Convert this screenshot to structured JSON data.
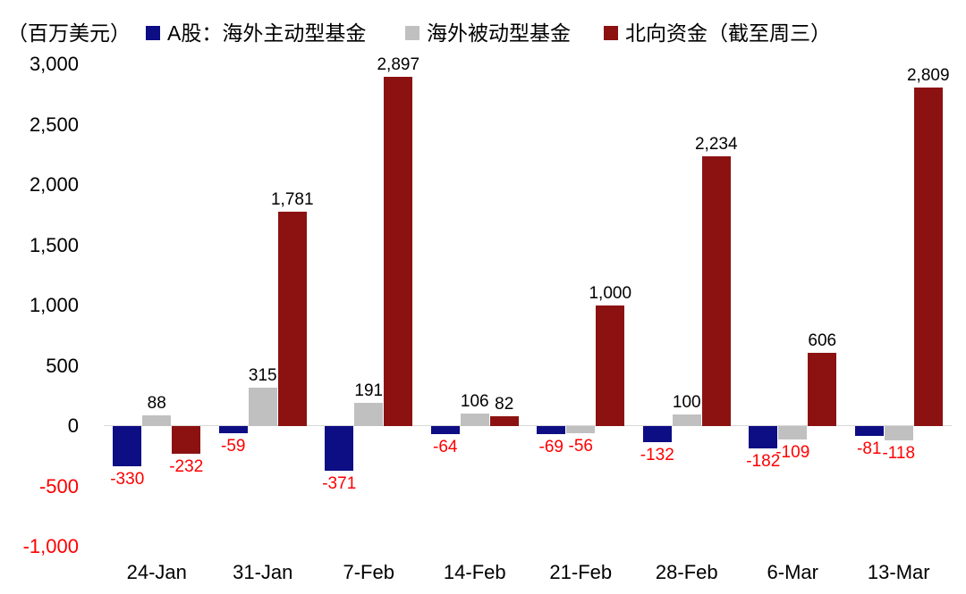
{
  "chart_data": {
    "type": "bar",
    "title": "",
    "ylabel": "（百万美元）",
    "xlabel": "",
    "categories": [
      "24-Jan",
      "31-Jan",
      "7-Feb",
      "14-Feb",
      "21-Feb",
      "28-Feb",
      "6-Mar",
      "13-Mar"
    ],
    "series": [
      {
        "name": "A股：海外主动型基金",
        "color": "#0d0d84",
        "values": [
          -330,
          -59,
          -371,
          -64,
          -69,
          -132,
          -182,
          -81
        ],
        "labels": [
          "-330",
          "-59",
          "-371",
          "-64",
          "-69",
          "-132",
          "-182",
          "-81"
        ]
      },
      {
        "name": "海外被动型基金",
        "color": "#c0c0c0",
        "values": [
          88,
          315,
          191,
          106,
          -56,
          100,
          -109,
          -118
        ],
        "labels": [
          "88",
          "315",
          "191",
          "106",
          "-56",
          "100",
          "-109",
          "-118"
        ]
      },
      {
        "name": "北向资金（截至周三）",
        "color": "#8c1212",
        "values": [
          -232,
          1781,
          2897,
          82,
          1000,
          2234,
          606,
          2809
        ],
        "labels": [
          "-232",
          "1,781",
          "2,897",
          "82",
          "1,000",
          "2,234",
          "606",
          "2,809"
        ]
      }
    ],
    "ylim": [
      -1000,
      3000
    ],
    "ytick_step": 500,
    "yticks": [
      {
        "label": "3,000",
        "value": 3000
      },
      {
        "label": "2,500",
        "value": 2500
      },
      {
        "label": "2,000",
        "value": 2000
      },
      {
        "label": "1,500",
        "value": 1500
      },
      {
        "label": "1,000",
        "value": 1000
      },
      {
        "label": "500",
        "value": 500
      },
      {
        "label": "0",
        "value": 0
      },
      {
        "label": "-500",
        "value": -500
      },
      {
        "label": "-1,000",
        "value": -1000
      }
    ],
    "negative_tick_color": "#ff0000",
    "value_labels": {
      "positive_color": "#000000",
      "negative_color": "#ff0000"
    },
    "zero_line_color": "#d9d9d9",
    "grid": false,
    "legend_position": "top"
  }
}
